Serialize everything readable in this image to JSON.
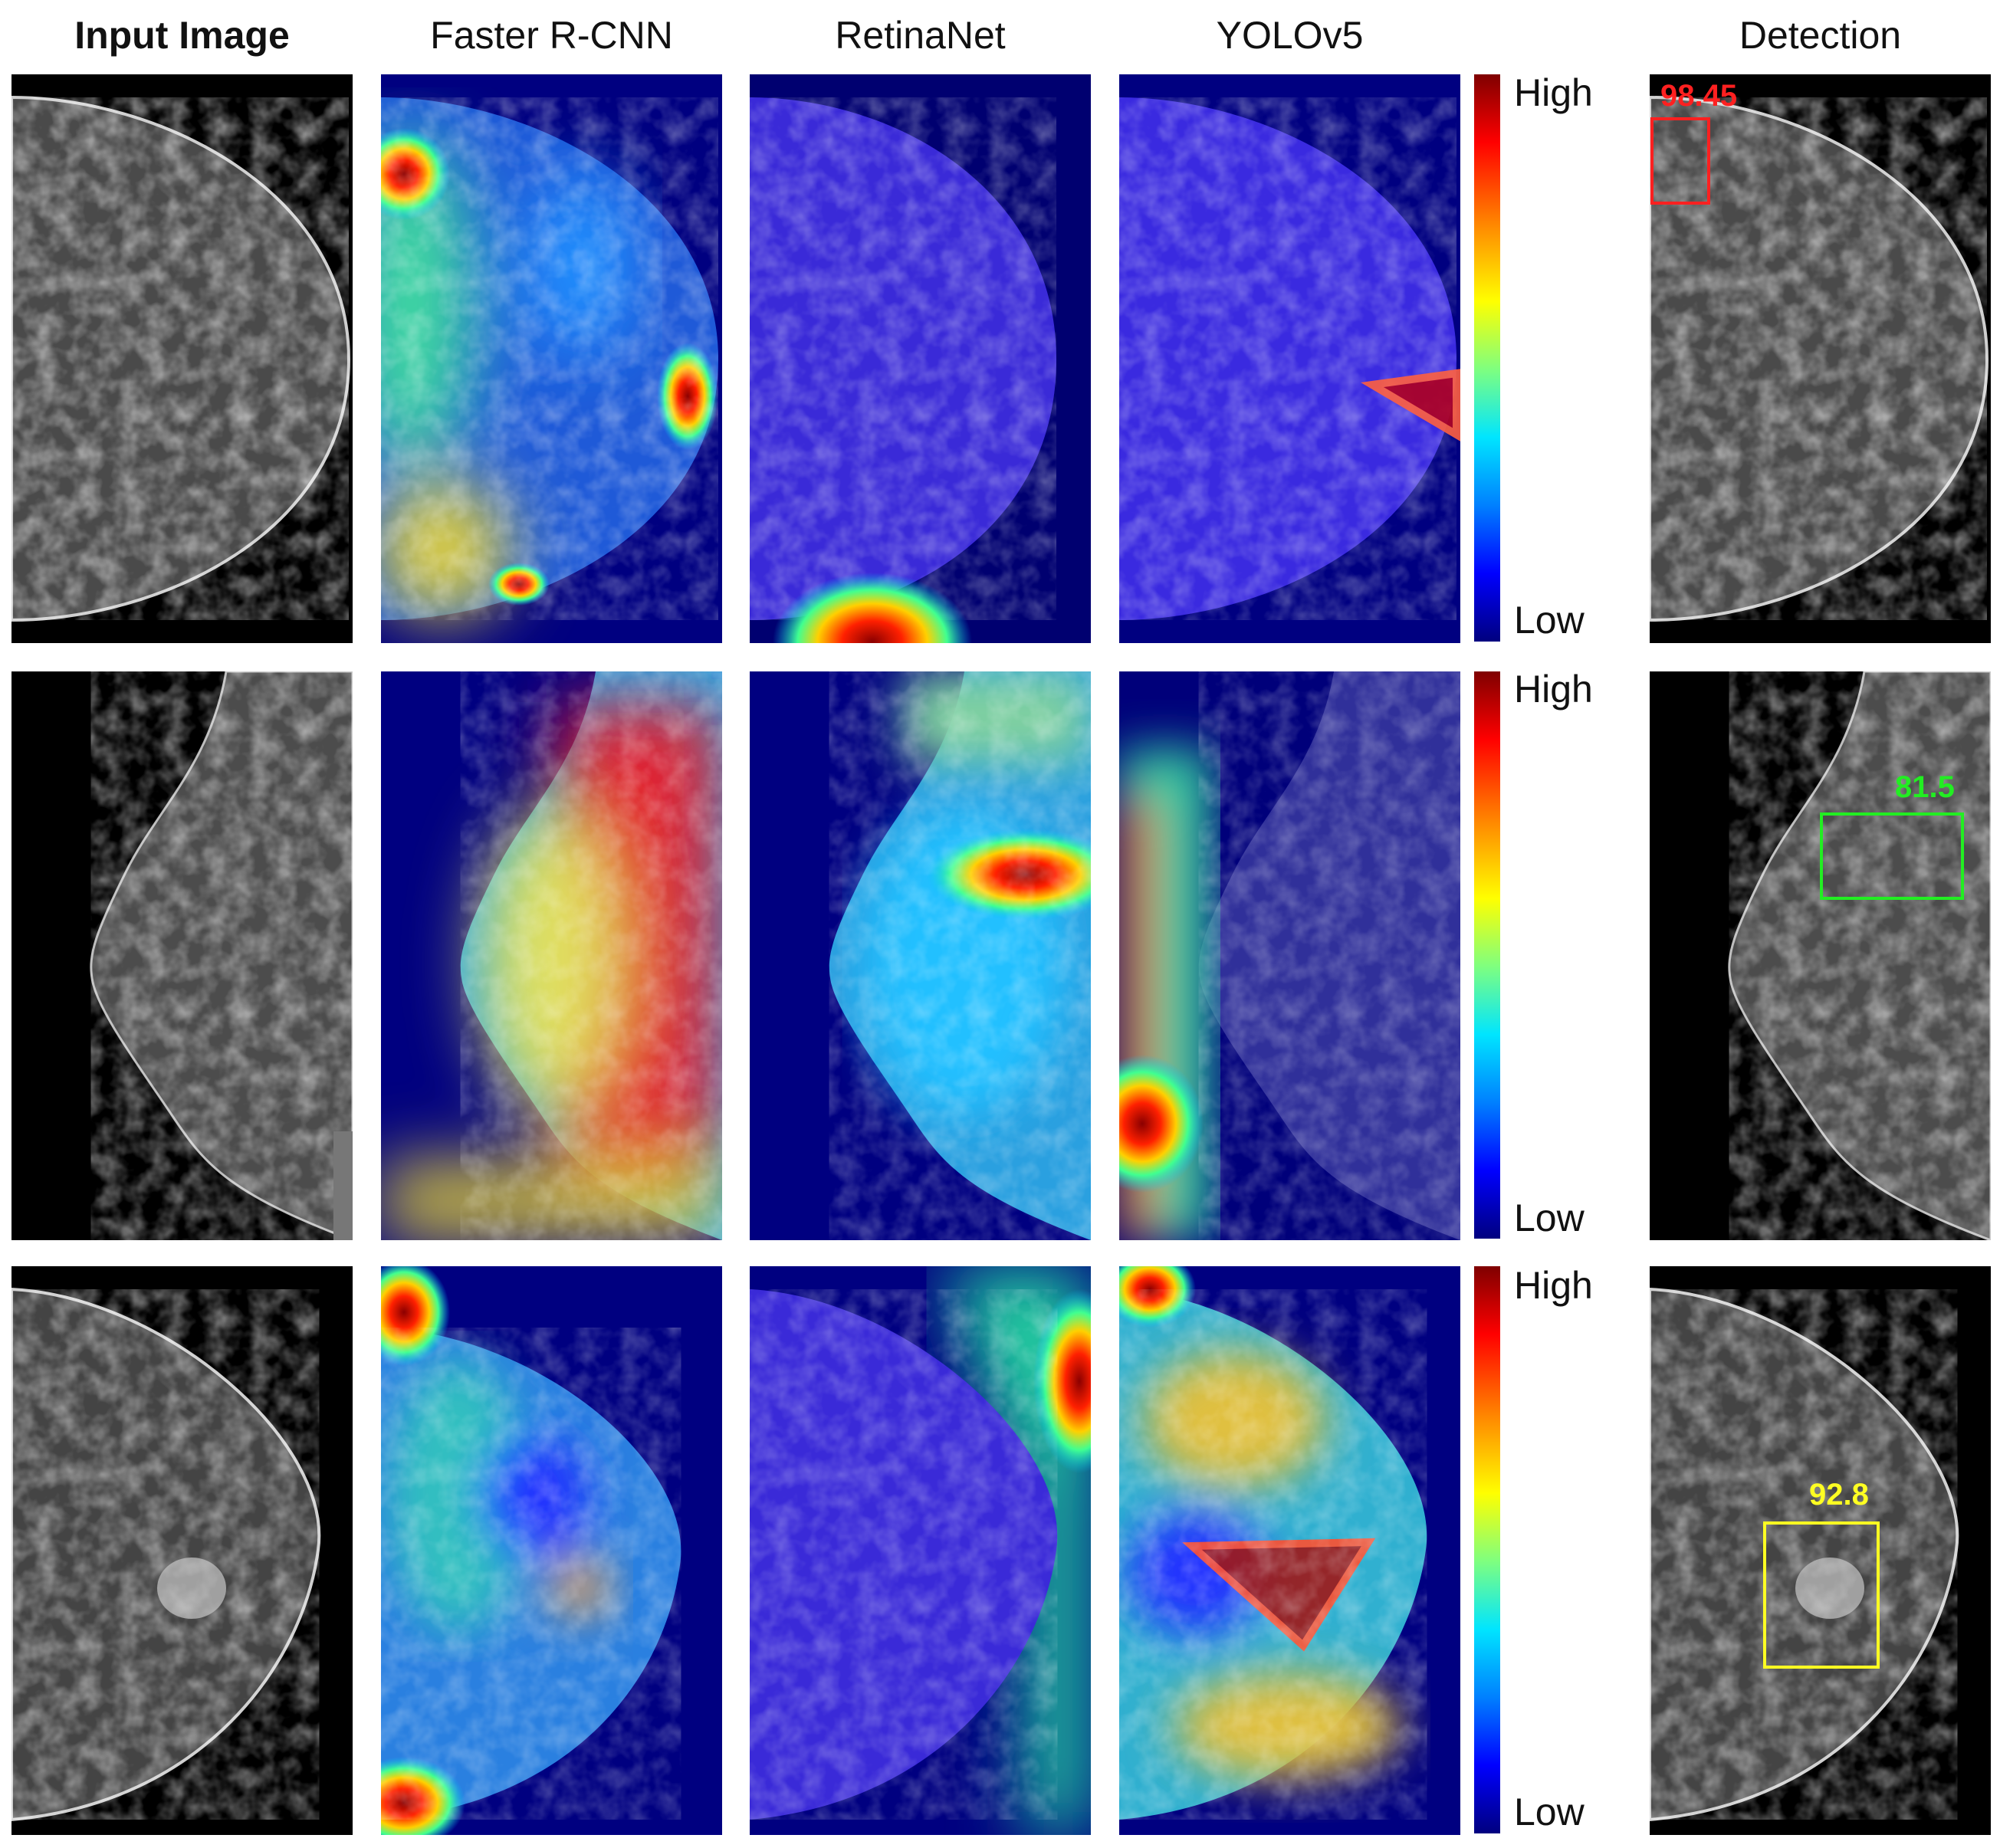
{
  "headers": [
    "Input Image",
    "Faster R-CNN",
    "RetinaNet",
    "YOLOv5",
    "Detection"
  ],
  "colorbar": {
    "high_label": "High",
    "low_label": "Low"
  },
  "detections": [
    {
      "score": "98.45",
      "color": "#ff2020"
    },
    {
      "score": "81.5",
      "color": "#22ee22"
    },
    {
      "score": "92.8",
      "color": "#ffff22"
    }
  ]
}
